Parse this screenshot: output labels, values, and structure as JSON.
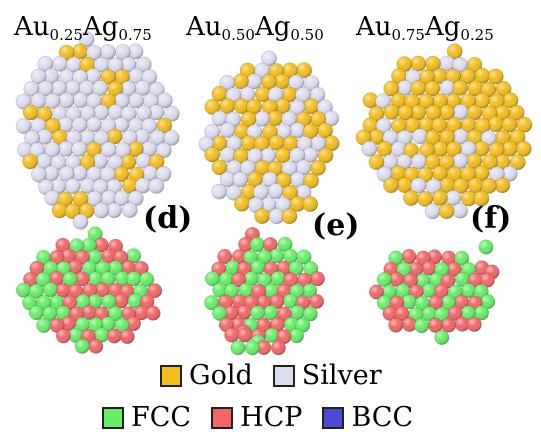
{
  "compositions": [
    {
      "base1": "Au",
      "sub1": "0.25",
      "base2": "Ag",
      "sub2": "0.75"
    },
    {
      "base1": "Au",
      "sub1": "0.50",
      "base2": "Ag",
      "sub2": "0.50"
    },
    {
      "base1": "Au",
      "sub1": "0.75",
      "base2": "Ag",
      "sub2": "0.25"
    }
  ],
  "panel_tags": [
    "(d)",
    "(e)",
    "(f)"
  ],
  "legend_elements": [
    {
      "label": "Gold",
      "color": "#f2bd1d"
    },
    {
      "label": "Silver",
      "color": "#dcdcf0"
    }
  ],
  "legend_structures": [
    {
      "label": "FCC",
      "color": "#66ee66"
    },
    {
      "label": "HCP",
      "color": "#f26666"
    },
    {
      "label": "BCC",
      "color": "#4a4ad6"
    }
  ],
  "gold_fractions": [
    0.25,
    0.5,
    0.75
  ]
}
